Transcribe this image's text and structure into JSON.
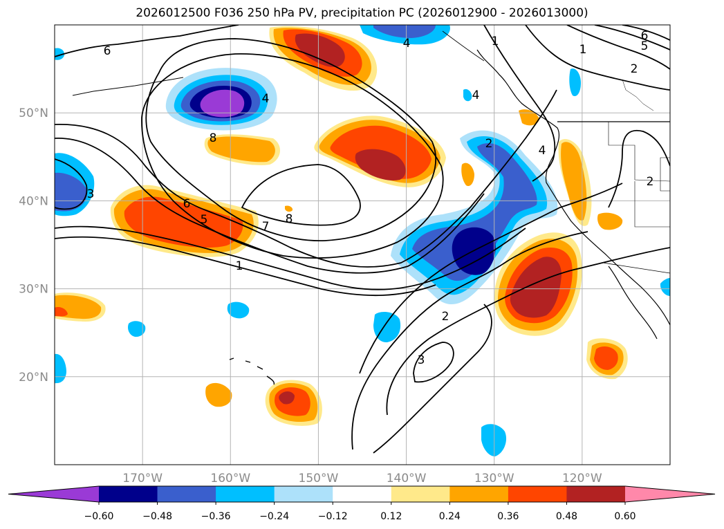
{
  "title": "2026012500 F036 250 hPa PV, precipitation PC (2026012900 - 2026013000)",
  "map": {
    "lon_range": [
      -180,
      -110
    ],
    "lat_range": [
      10,
      60
    ],
    "lat_ticks": [
      {
        "value": 50,
        "label": "50°N"
      },
      {
        "value": 40,
        "label": "40°N"
      },
      {
        "value": 30,
        "label": "30°N"
      },
      {
        "value": 20,
        "label": "20°N"
      }
    ],
    "lon_ticks": [
      {
        "value": -170,
        "label": "170°W"
      },
      {
        "value": -160,
        "label": "160°W"
      },
      {
        "value": -150,
        "label": "150°W"
      },
      {
        "value": -140,
        "label": "140°W"
      },
      {
        "value": -130,
        "label": "130°W"
      },
      {
        "value": -120,
        "label": "120°W"
      }
    ],
    "gridlines": true
  },
  "colorbar": {
    "extend": "both",
    "ticks": [
      "−0.60",
      "−0.48",
      "−0.36",
      "−0.24",
      "−0.12",
      "0.12",
      "0.24",
      "0.36",
      "0.48",
      "0.60"
    ],
    "colors": [
      "#9a3ad6",
      "#00008b",
      "#3a5fcd",
      "#00bfff",
      "#ade1fa",
      "#ffffff",
      "#ffe98a",
      "#ffa500",
      "#ff4500",
      "#b22222",
      "#ff88aa"
    ]
  },
  "pv_contour_labels": [
    "6",
    "4",
    "1",
    "6",
    "5",
    "1",
    "2",
    "4",
    "8",
    "3",
    "6",
    "5",
    "7",
    "8",
    "1",
    "2",
    "4",
    "2",
    "3",
    "2",
    "4"
  ]
}
